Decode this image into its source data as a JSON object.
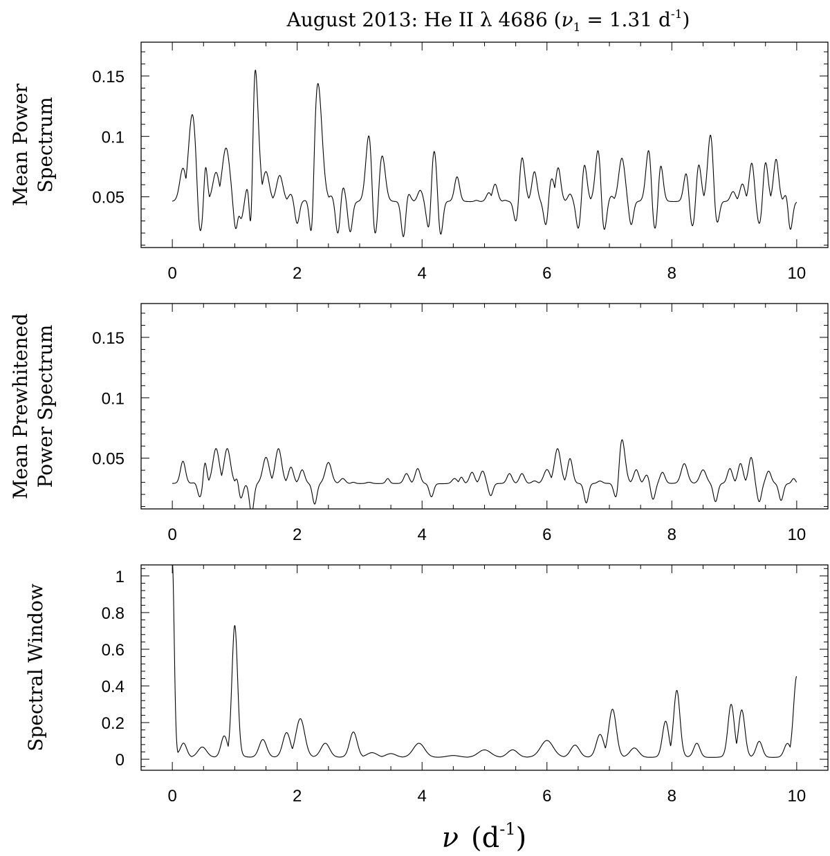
{
  "title": {
    "prefix": "August 2013: He II ",
    "lambda": "λ",
    "wavelength": " 4686 (",
    "nu": "ν",
    "nu_sub": "1",
    "equals": " = 1.31 d",
    "exponent": "-1",
    "close": ")"
  },
  "xlabel": {
    "nu": "ν",
    "open": "(d",
    "exponent": "-1",
    "close": ")"
  },
  "chart_data": [
    {
      "type": "line",
      "name": "mean-power-spectrum",
      "ylabel_lines": [
        "Mean Power",
        "Spectrum"
      ],
      "xlim": [
        -0.5,
        10.5
      ],
      "ylim": [
        0.008,
        0.178
      ],
      "xticks": [
        0,
        2,
        4,
        6,
        8,
        10
      ],
      "xtick_labels": [
        "0",
        "2",
        "4",
        "6",
        "8",
        "10"
      ],
      "yticks": [
        0.05,
        0.1,
        0.15
      ],
      "ytick_labels": [
        "0.05",
        "0.1",
        "0.15"
      ],
      "base": 0.046,
      "peaks": [
        [
          0.17,
          0.072,
          0.05
        ],
        [
          0.32,
          0.116,
          0.06
        ],
        [
          0.53,
          0.076,
          0.03
        ],
        [
          0.7,
          0.069,
          0.05
        ],
        [
          0.86,
          0.089,
          0.06
        ],
        [
          1.05,
          0.043,
          0.03
        ],
        [
          1.31,
          0.168,
          0.06
        ],
        [
          1.5,
          0.069,
          0.05
        ],
        [
          1.72,
          0.067,
          0.05
        ],
        [
          1.9,
          0.052,
          0.04
        ],
        [
          2.1,
          0.043,
          0.03
        ],
        [
          2.33,
          0.142,
          0.065
        ],
        [
          2.55,
          0.05,
          0.04
        ],
        [
          2.73,
          0.059,
          0.04
        ],
        [
          2.92,
          0.028,
          0.03
        ],
        [
          3.15,
          0.1,
          0.05
        ],
        [
          3.36,
          0.083,
          0.05
        ],
        [
          3.55,
          0.045,
          0.03
        ],
        [
          3.77,
          0.054,
          0.04
        ],
        [
          3.97,
          0.055,
          0.04
        ],
        [
          4.19,
          0.089,
          0.05
        ],
        [
          4.38,
          0.045,
          0.04
        ],
        [
          4.56,
          0.066,
          0.04
        ],
        [
          4.72,
          0.046,
          0.03
        ],
        [
          4.87,
          0.047,
          0.03
        ],
        [
          5.07,
          0.053,
          0.04
        ],
        [
          5.17,
          0.06,
          0.04
        ],
        [
          5.33,
          0.047,
          0.03
        ],
        [
          5.6,
          0.082,
          0.045
        ],
        [
          5.8,
          0.07,
          0.04
        ],
        [
          6.07,
          0.065,
          0.05
        ],
        [
          6.18,
          0.073,
          0.04
        ],
        [
          6.37,
          0.052,
          0.035
        ],
        [
          6.6,
          0.076,
          0.04
        ],
        [
          6.82,
          0.088,
          0.045
        ],
        [
          7.03,
          0.05,
          0.04
        ],
        [
          7.2,
          0.081,
          0.05
        ],
        [
          7.43,
          0.043,
          0.04
        ],
        [
          7.63,
          0.088,
          0.045
        ],
        [
          7.82,
          0.076,
          0.04
        ],
        [
          8.03,
          0.045,
          0.04
        ],
        [
          8.23,
          0.069,
          0.04
        ],
        [
          8.43,
          0.076,
          0.04
        ],
        [
          8.62,
          0.1,
          0.045
        ],
        [
          8.8,
          0.045,
          0.03
        ],
        [
          8.98,
          0.054,
          0.04
        ],
        [
          9.13,
          0.06,
          0.04
        ],
        [
          9.28,
          0.077,
          0.04
        ],
        [
          9.5,
          0.078,
          0.04
        ],
        [
          9.67,
          0.08,
          0.04
        ],
        [
          9.85,
          0.055,
          0.04
        ],
        [
          10.0,
          0.039,
          0.03
        ]
      ],
      "dips": [
        [
          0.45,
          0.022
        ],
        [
          1.02,
          0.023
        ],
        [
          1.1,
          0.032
        ],
        [
          1.25,
          0.03
        ],
        [
          2.0,
          0.028
        ],
        [
          2.22,
          0.022
        ],
        [
          2.65,
          0.02
        ],
        [
          2.85,
          0.021
        ],
        [
          3.25,
          0.02
        ],
        [
          3.7,
          0.017
        ],
        [
          4.1,
          0.025
        ],
        [
          4.3,
          0.019
        ],
        [
          5.5,
          0.03
        ],
        [
          5.98,
          0.027
        ],
        [
          6.5,
          0.024
        ],
        [
          6.92,
          0.023
        ],
        [
          7.35,
          0.027
        ],
        [
          7.73,
          0.024
        ],
        [
          8.33,
          0.026
        ],
        [
          8.73,
          0.029
        ],
        [
          9.4,
          0.028
        ],
        [
          9.9,
          0.023
        ]
      ]
    },
    {
      "type": "line",
      "name": "mean-prewhitened-power-spectrum",
      "ylabel_lines": [
        "Mean Prewhitened",
        "Power Spectrum"
      ],
      "xlim": [
        -0.5,
        10.5
      ],
      "ylim": [
        0.008,
        0.178
      ],
      "xticks": [
        0,
        2,
        4,
        6,
        8,
        10
      ],
      "xtick_labels": [
        "0",
        "2",
        "4",
        "6",
        "8",
        "10"
      ],
      "yticks": [
        0.05,
        0.1,
        0.15
      ],
      "ytick_labels": [
        "0.05",
        "0.1",
        "0.15"
      ],
      "base": 0.029,
      "peaks": [
        [
          0.17,
          0.047,
          0.04
        ],
        [
          0.38,
          0.03,
          0.04
        ],
        [
          0.52,
          0.047,
          0.03
        ],
        [
          0.7,
          0.057,
          0.05
        ],
        [
          0.88,
          0.057,
          0.05
        ],
        [
          1.05,
          0.036,
          0.03
        ],
        [
          1.5,
          0.05,
          0.05
        ],
        [
          1.7,
          0.057,
          0.05
        ],
        [
          1.9,
          0.042,
          0.04
        ],
        [
          2.08,
          0.04,
          0.04
        ],
        [
          2.28,
          0.024,
          0.04
        ],
        [
          2.5,
          0.046,
          0.05
        ],
        [
          2.73,
          0.033,
          0.04
        ],
        [
          2.9,
          0.03,
          0.03
        ],
        [
          3.15,
          0.03,
          0.04
        ],
        [
          3.45,
          0.033,
          0.03
        ],
        [
          3.75,
          0.037,
          0.04
        ],
        [
          3.93,
          0.041,
          0.04
        ],
        [
          4.3,
          0.023,
          0.04
        ],
        [
          4.52,
          0.033,
          0.04
        ],
        [
          4.63,
          0.034,
          0.03
        ],
        [
          4.8,
          0.038,
          0.04
        ],
        [
          4.97,
          0.039,
          0.04
        ],
        [
          5.4,
          0.037,
          0.04
        ],
        [
          5.6,
          0.037,
          0.04
        ],
        [
          5.8,
          0.031,
          0.04
        ],
        [
          6.0,
          0.04,
          0.05
        ],
        [
          6.17,
          0.057,
          0.05
        ],
        [
          6.37,
          0.049,
          0.04
        ],
        [
          6.6,
          0.026,
          0.04
        ],
        [
          6.85,
          0.031,
          0.04
        ],
        [
          7.2,
          0.065,
          0.05
        ],
        [
          7.43,
          0.04,
          0.04
        ],
        [
          7.6,
          0.036,
          0.04
        ],
        [
          7.85,
          0.038,
          0.04
        ],
        [
          8.2,
          0.045,
          0.05
        ],
        [
          8.5,
          0.04,
          0.05
        ],
        [
          8.75,
          0.027,
          0.04
        ],
        [
          8.93,
          0.041,
          0.04
        ],
        [
          9.1,
          0.045,
          0.04
        ],
        [
          9.27,
          0.05,
          0.04
        ],
        [
          9.55,
          0.039,
          0.04
        ],
        [
          9.8,
          0.021,
          0.03
        ],
        [
          9.95,
          0.033,
          0.03
        ]
      ],
      "dips": [
        [
          0.44,
          0.018
        ],
        [
          1.1,
          0.017
        ],
        [
          1.27,
          0.004
        ],
        [
          2.28,
          0.012
        ],
        [
          4.15,
          0.018
        ],
        [
          5.1,
          0.019
        ],
        [
          6.63,
          0.013
        ],
        [
          7.1,
          0.018
        ],
        [
          7.7,
          0.016
        ],
        [
          8.7,
          0.014
        ],
        [
          9.4,
          0.014
        ],
        [
          9.75,
          0.015
        ]
      ]
    },
    {
      "type": "line",
      "name": "spectral-window",
      "ylabel_lines": [
        "Spectral Window"
      ],
      "xlim": [
        -0.5,
        10.5
      ],
      "ylim": [
        -0.06,
        1.06
      ],
      "xticks": [
        0,
        2,
        4,
        6,
        8,
        10
      ],
      "xtick_labels": [
        "0",
        "2",
        "4",
        "6",
        "8",
        "10"
      ],
      "yticks": [
        0,
        0.2,
        0.4,
        0.6,
        0.8,
        1
      ],
      "ytick_labels": [
        "0",
        "0.2",
        "0.4",
        "0.6",
        "0.8",
        "1"
      ],
      "base": 0.01,
      "peaks": [
        [
          0.0,
          1.05,
          0.03
        ],
        [
          0.18,
          0.085,
          0.05
        ],
        [
          0.48,
          0.065,
          0.07
        ],
        [
          0.83,
          0.12,
          0.05
        ],
        [
          1.0,
          0.71,
          0.045
        ],
        [
          1.45,
          0.105,
          0.06
        ],
        [
          1.83,
          0.14,
          0.06
        ],
        [
          2.05,
          0.215,
          0.07
        ],
        [
          2.45,
          0.085,
          0.07
        ],
        [
          2.9,
          0.145,
          0.06
        ],
        [
          3.2,
          0.035,
          0.08
        ],
        [
          3.5,
          0.03,
          0.08
        ],
        [
          3.95,
          0.085,
          0.09
        ],
        [
          4.5,
          0.02,
          0.1
        ],
        [
          5.0,
          0.05,
          0.1
        ],
        [
          5.45,
          0.05,
          0.08
        ],
        [
          6.0,
          0.1,
          0.1
        ],
        [
          6.45,
          0.075,
          0.07
        ],
        [
          6.85,
          0.13,
          0.06
        ],
        [
          7.05,
          0.265,
          0.06
        ],
        [
          7.4,
          0.06,
          0.07
        ],
        [
          7.9,
          0.2,
          0.05
        ],
        [
          8.08,
          0.365,
          0.05
        ],
        [
          8.4,
          0.085,
          0.05
        ],
        [
          8.95,
          0.29,
          0.05
        ],
        [
          9.12,
          0.26,
          0.05
        ],
        [
          9.4,
          0.095,
          0.05
        ],
        [
          9.85,
          0.08,
          0.05
        ],
        [
          10.0,
          0.44,
          0.05
        ]
      ],
      "dips": []
    }
  ]
}
